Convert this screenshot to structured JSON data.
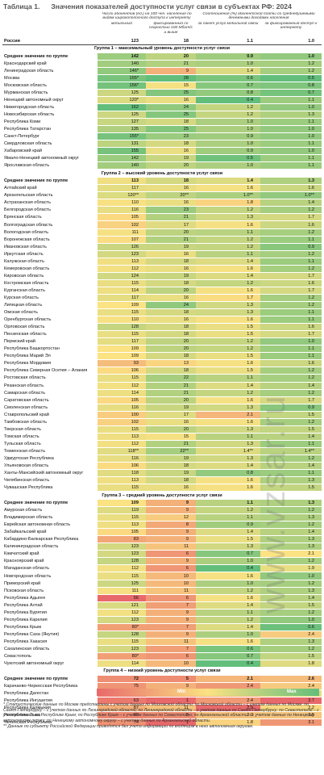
{
  "title_label": "Таблица 1.",
  "title": "Значения показателей доступности услуг связи в субъектах РФ: 2024",
  "header": {
    "group1": "Число абонентов (ед.) на 100 чел. населения по видам широкополосного доступа к интернету",
    "group1_cols": [
      "мобильный",
      "фиксированный со скоростью 100 Мбит/с и выше"
    ],
    "group2": "Соотношение (%) абонентской платы со среднедушевыми денежными доходами населения",
    "group2_cols": [
      "за пакет услуг мобильной связи",
      "за фиксированный доступ к интернету"
    ]
  },
  "total": {
    "name": "Россия",
    "values": [
      "123",
      "18",
      "1.1",
      "1.0"
    ]
  },
  "groups": [
    {
      "title": "Группа 1 – максимальный уровень доступности услуг связи",
      "average": {
        "name": "Среднее значение по группе",
        "values": [
          "142",
          "20",
          "0.9",
          "1.0"
        ]
      },
      "rows": [
        {
          "name": "Краснодарский край",
          "values": [
            "140",
            "21",
            "1.0",
            "1.2"
          ]
        },
        {
          "name": "Ленинградская область",
          "values": [
            "146*",
            "9",
            "1.4",
            "1.2"
          ]
        },
        {
          "name": "Москва",
          "values": [
            "155*",
            "28",
            "0.6",
            "0.5"
          ]
        },
        {
          "name": "Московская область",
          "values": [
            "156*",
            "15",
            "0.7",
            "0.8"
          ]
        },
        {
          "name": "Мурманская область",
          "values": [
            "125",
            "25",
            "0.8",
            "0.7"
          ]
        },
        {
          "name": "Ненецкий автономный округ",
          "values": [
            "120*",
            "16",
            "0.4",
            "1.1"
          ]
        },
        {
          "name": "Нижегородская область",
          "values": [
            "162",
            "24",
            "1.2",
            "1.0"
          ]
        },
        {
          "name": "Новосибирская область",
          "values": [
            "125",
            "25",
            "1.2",
            "1.3"
          ]
        },
        {
          "name": "Республика Коми",
          "values": [
            "127",
            "18",
            "1.0",
            "1.1"
          ]
        },
        {
          "name": "Республика Татарстан",
          "values": [
            "135",
            "25",
            "1.0",
            "1.0"
          ]
        },
        {
          "name": "Санкт-Петербург",
          "values": [
            "155*",
            "23",
            "0.9",
            "1.0"
          ]
        },
        {
          "name": "Свердловская область",
          "values": [
            "131",
            "18",
            "1.0",
            "1.1"
          ]
        },
        {
          "name": "Хабаровский край",
          "values": [
            "155",
            "16",
            "0.9",
            "1.0"
          ]
        },
        {
          "name": "Ямало-Ненецкий автономный округ",
          "values": [
            "142",
            "19",
            "0.5",
            "1.1"
          ]
        },
        {
          "name": "Ярославская область",
          "values": [
            "140",
            "20",
            "1.0",
            "1.1"
          ]
        }
      ]
    },
    {
      "title": "Группа 2 – высокий уровень доступности услуг связи",
      "average": {
        "name": "Среднее значение по группе",
        "values": [
          "113",
          "18",
          "1.4",
          "1.3"
        ]
      },
      "rows": [
        {
          "name": "Алтайский край",
          "values": [
            "117",
            "16",
            "1.6",
            "1.6"
          ]
        },
        {
          "name": "Архангельская область",
          "values": [
            "120**",
            "20**",
            "1.0**",
            "1.0**"
          ]
        },
        {
          "name": "Астраханская область",
          "values": [
            "110",
            "16",
            "1.8",
            "1.4"
          ]
        },
        {
          "name": "Белгородская область",
          "values": [
            "116",
            "23",
            "1.2",
            "1.2"
          ]
        },
        {
          "name": "Брянская область",
          "values": [
            "105",
            "21",
            "1.3",
            "1.7"
          ]
        },
        {
          "name": "Волгоградская область",
          "values": [
            "102",
            "17",
            "1.6",
            "1.6"
          ]
        },
        {
          "name": "Вологодская область",
          "values": [
            "111",
            "20",
            "1.1",
            "1.2"
          ]
        },
        {
          "name": "Воронежская область",
          "values": [
            "107",
            "21",
            "1.2",
            "1.1"
          ]
        },
        {
          "name": "Ивановская область",
          "values": [
            "126",
            "19",
            "1.2",
            "0.9"
          ]
        },
        {
          "name": "Иркутская область",
          "values": [
            "123",
            "16",
            "1.1",
            "1.2"
          ]
        },
        {
          "name": "Калужская область",
          "values": [
            "113",
            "18",
            "1.4",
            "1.1"
          ]
        },
        {
          "name": "Кемеровская область",
          "values": [
            "112",
            "16",
            "1.6",
            "1.2"
          ]
        },
        {
          "name": "Кировская область",
          "values": [
            "124",
            "19",
            "1.4",
            "1.7"
          ]
        },
        {
          "name": "Костромская область",
          "values": [
            "115",
            "18",
            "1.2",
            "1.6"
          ]
        },
        {
          "name": "Курганская область",
          "values": [
            "114",
            "20",
            "1.6",
            "1.7"
          ]
        },
        {
          "name": "Курская область",
          "values": [
            "117",
            "16",
            "1.7",
            "1.2"
          ]
        },
        {
          "name": "Липецкая область",
          "values": [
            "109",
            "24",
            "1.3",
            "1.2"
          ]
        },
        {
          "name": "Омская область",
          "values": [
            "115",
            "18",
            "1.3",
            "1.1"
          ]
        },
        {
          "name": "Оренбургская область",
          "values": [
            "110",
            "16",
            "1.6",
            "1.1"
          ]
        },
        {
          "name": "Орловская область",
          "values": [
            "128",
            "18",
            "1.5",
            "1.6"
          ]
        },
        {
          "name": "Пензенская область",
          "values": [
            "115",
            "18",
            "1.5",
            "1.7"
          ]
        },
        {
          "name": "Пермский край",
          "values": [
            "117",
            "20",
            "1.2",
            "1.0"
          ]
        },
        {
          "name": "Республика Башкортостан",
          "values": [
            "109",
            "20",
            "1.2",
            "1.1"
          ]
        },
        {
          "name": "Республика Марий Эл",
          "values": [
            "109",
            "18",
            "1.5",
            "1.1"
          ]
        },
        {
          "name": "Республика Мордовия",
          "values": [
            "93",
            "13",
            "1.6",
            "1.6"
          ]
        },
        {
          "name": "Республика Северная Осетия – Алания",
          "values": [
            "106",
            "18",
            "1.5",
            "1.2"
          ]
        },
        {
          "name": "Ростовская область",
          "values": [
            "115",
            "22",
            "1.1",
            "1.2"
          ]
        },
        {
          "name": "Рязанская область",
          "values": [
            "112",
            "21",
            "1.4",
            "1.4"
          ]
        },
        {
          "name": "Самарская область",
          "values": [
            "114",
            "21",
            "1.2",
            "1.2"
          ]
        },
        {
          "name": "Саратовская область",
          "values": [
            "105",
            "20",
            "1.6",
            "1.7"
          ]
        },
        {
          "name": "Смоленская область",
          "values": [
            "116",
            "19",
            "1.3",
            "0.9"
          ]
        },
        {
          "name": "Ставропольский край",
          "values": [
            "100",
            "17",
            "2.1",
            "1.5"
          ]
        },
        {
          "name": "Тамбовская область",
          "values": [
            "102",
            "16",
            "1.6",
            "1.2"
          ]
        },
        {
          "name": "Тверская область",
          "values": [
            "115",
            "20",
            "1.3",
            "1.5"
          ]
        },
        {
          "name": "Томская область",
          "values": [
            "113",
            "15",
            "1.1",
            "1.4"
          ]
        },
        {
          "name": "Тульская область",
          "values": [
            "112",
            "21",
            "1.3",
            "1.1"
          ]
        },
        {
          "name": "Тюменская область",
          "values": [
            "118**",
            "22**",
            "1.4**",
            "1.4**"
          ]
        },
        {
          "name": "Удмуртская Республика",
          "values": [
            "116",
            "19",
            "1.3",
            "1.2"
          ]
        },
        {
          "name": "Ульяновская область",
          "values": [
            "106",
            "18",
            "1.4",
            "1.4"
          ]
        },
        {
          "name": "Ханты-Мансийский автономный округ",
          "values": [
            "118",
            "19",
            "0.8",
            "1.1"
          ]
        },
        {
          "name": "Челябинская область",
          "values": [
            "113",
            "18",
            "1.6",
            "1.3"
          ]
        },
        {
          "name": "Чувашская Республика",
          "values": [
            "115",
            "16",
            "1.6",
            "1.5"
          ]
        }
      ]
    },
    {
      "title": "Группа 3 – средний уровень доступности услуг связи",
      "average": {
        "name": "Среднее значение по группе",
        "values": [
          "109",
          "9",
          "1.1",
          "1.3"
        ]
      },
      "rows": [
        {
          "name": "Амурская область",
          "values": [
            "119",
            "9",
            "1.2",
            "1.2"
          ]
        },
        {
          "name": "Владимирская область",
          "values": [
            "115",
            "12",
            "1.1",
            "1.3"
          ]
        },
        {
          "name": "Еврейская автономная область",
          "values": [
            "113",
            "8",
            "0.9",
            "1.2"
          ]
        },
        {
          "name": "Забайкальский край",
          "values": [
            "105",
            "9",
            "1.4",
            "1.4"
          ]
        },
        {
          "name": "Кабардино-Балкарская Республика",
          "values": [
            "83",
            "9",
            "1.5",
            "1.3"
          ]
        },
        {
          "name": "Калининградская область",
          "values": [
            "123",
            "11",
            "1.3",
            "1.3"
          ]
        },
        {
          "name": "Камчатский край",
          "values": [
            "123",
            "6",
            "0.7",
            "2.1"
          ]
        },
        {
          "name": "Красноярский край",
          "values": [
            "128",
            "9",
            "1.0",
            "1.2"
          ]
        },
        {
          "name": "Магаданская область",
          "values": [
            "112",
            "6",
            "0.4",
            "1.9"
          ]
        },
        {
          "name": "Новгородская область",
          "values": [
            "115",
            "10",
            "1.6",
            "1.0"
          ]
        },
        {
          "name": "Приморский край",
          "values": [
            "125",
            "10",
            "1.0",
            "1.2"
          ]
        },
        {
          "name": "Псковская область",
          "values": [
            "111",
            "11",
            "1.2",
            "1.3"
          ]
        },
        {
          "name": "Республика Адыгея",
          "values": [
            "56",
            "6",
            "1.6",
            "1.4"
          ]
        },
        {
          "name": "Республика Алтай",
          "values": [
            "121",
            "7",
            "1.4",
            "1.5"
          ]
        },
        {
          "name": "Республика Бурятия",
          "values": [
            "112",
            "9",
            "1.1",
            "1.2"
          ]
        },
        {
          "name": "Республика Карелия",
          "values": [
            "123",
            "9",
            "1.2",
            "1.0"
          ]
        },
        {
          "name": "Республика Крым",
          "values": [
            "80*",
            "7",
            "1.4",
            "0.6"
          ]
        },
        {
          "name": "Республика Саха (Якутия)",
          "values": [
            "128",
            "9",
            "1.0",
            "2.4"
          ]
        },
        {
          "name": "Республика Хакасия",
          "values": [
            "115",
            "11",
            "1.6",
            "1.3"
          ]
        },
        {
          "name": "Сахалинская область",
          "values": [
            "123",
            "7",
            "0.6",
            "1.2"
          ]
        },
        {
          "name": "Севастополь",
          "values": [
            "80*",
            "6",
            "0.7",
            "1.5"
          ]
        },
        {
          "name": "Чукотский автономный округ",
          "values": [
            "114",
            "10",
            "0.4",
            "1.8"
          ]
        }
      ]
    },
    {
      "title": "Группа 4 – низкий уровень доступности услуг связи",
      "average": {
        "name": "Среднее значение по группе",
        "values": [
          "72",
          "5",
          "2.1",
          "2.6"
        ]
      },
      "rows": [
        {
          "name": "Карачаево-Черкесская Республика",
          "values": [
            "75",
            "9",
            "2.4",
            "2.4"
          ]
        },
        {
          "name": "Республика Дагестан",
          "values": [
            "66",
            "8",
            "2.1",
            "1.9"
          ]
        },
        {
          "name": "Республика Ингушетия",
          "values": [
            "63",
            "1",
            "2.4",
            "3.7"
          ]
        },
        {
          "name": "Республика Калмыкия",
          "values": [
            "87",
            "11",
            "2.9",
            "2.2"
          ]
        },
        {
          "name": "Республика Тыва",
          "values": [
            "69",
            "5",
            "2.0",
            "2.5"
          ]
        },
        {
          "name": "Чеченская Республика",
          "values": [
            "74",
            "1",
            "1.8",
            "3.1"
          ]
        }
      ]
    }
  ],
  "legend": {
    "min": "Min",
    "max": "Max"
  },
  "footnotes": [
    "* Статистические данные по Москве представлены с учетом данных по Московской области; по Московской области – с учетом данных по Москве; по Санкт-Петербургу – с учетом данных по Ленинградской области; по Ленинградской области – с учетом данных по Санкт-Петербургу; по Севастополю – с учетом данных по Республике Крым; по Республике Крым – с учетом данных по Севастополю; по Архангельской области – с учетом данных по Ненецкому автономному округу; по Ненецкому автономному округу – с учетом данных по Архангельской области.",
    "** Данные по субъекту Российской Федерации приводятся без учета информации по входящим в него автономным округам."
  ],
  "watermark": "www.vzsar.ru"
}
